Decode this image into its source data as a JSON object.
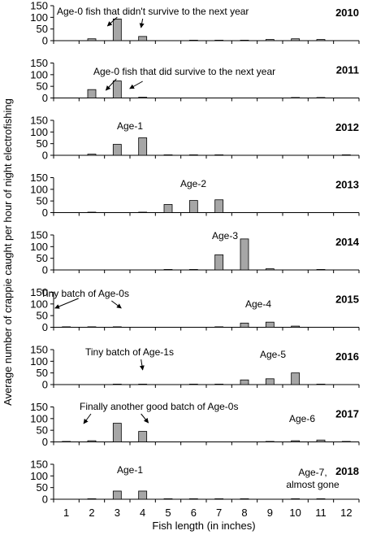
{
  "chart_data": {
    "type": "bar",
    "ylabel": "Average number of crappie caught per hour of night electrofishing",
    "xlabel": "Fish length (in inches)",
    "categories": [
      "1",
      "2",
      "3",
      "4",
      "5",
      "6",
      "7",
      "8",
      "9",
      "10",
      "11",
      "12"
    ],
    "ylim": [
      0,
      150
    ],
    "yticks": [
      0,
      50,
      100,
      150
    ],
    "bar_color": "#a6a6a6",
    "panels": [
      {
        "year": "2010",
        "values": [
          0,
          8,
          93,
          18,
          0,
          2,
          2,
          2,
          5,
          8,
          5,
          0
        ],
        "annotations": [
          {
            "text": "Age-0 fish that didn't survive to the next year",
            "targets": [
              3,
              4
            ]
          }
        ]
      },
      {
        "year": "2011",
        "values": [
          0,
          36,
          73,
          3,
          0,
          0,
          0,
          0,
          0,
          2,
          2,
          0
        ],
        "annotations": [
          {
            "text": "Age-0 fish that did survive to the next year",
            "targets": [
              3,
              4
            ]
          }
        ]
      },
      {
        "year": "2012",
        "values": [
          0,
          5,
          47,
          75,
          2,
          2,
          2,
          0,
          0,
          0,
          0,
          2
        ],
        "annotations": [
          {
            "text": "Age-1",
            "targets": []
          }
        ]
      },
      {
        "year": "2013",
        "values": [
          0,
          2,
          0,
          2,
          35,
          52,
          55,
          0,
          0,
          0,
          0,
          0
        ],
        "annotations": [
          {
            "text": "Age-2",
            "targets": []
          }
        ]
      },
      {
        "year": "2014",
        "values": [
          0,
          0,
          0,
          0,
          2,
          2,
          65,
          133,
          5,
          0,
          2,
          0
        ],
        "annotations": [
          {
            "text": "Age-3",
            "targets": []
          }
        ]
      },
      {
        "year": "2015",
        "values": [
          2,
          2,
          2,
          0,
          0,
          0,
          2,
          18,
          22,
          5,
          0,
          0
        ],
        "annotations": [
          {
            "text": "Tiny batch of Age-0s",
            "targets": [
              1,
              3
            ]
          },
          {
            "text": "Age-4",
            "targets": []
          }
        ]
      },
      {
        "year": "2016",
        "values": [
          0,
          0,
          2,
          2,
          0,
          2,
          2,
          20,
          25,
          50,
          2,
          0
        ],
        "annotations": [
          {
            "text": "Tiny batch of Age-1s",
            "targets": [
              4
            ]
          },
          {
            "text": "Age-5",
            "targets": []
          }
        ]
      },
      {
        "year": "2017",
        "values": [
          2,
          5,
          80,
          45,
          0,
          0,
          0,
          0,
          2,
          5,
          8,
          2
        ],
        "annotations": [
          {
            "text": "Finally another good batch of Age-0s",
            "targets": [
              2,
              4
            ]
          },
          {
            "text": "Age-6",
            "targets": []
          }
        ]
      },
      {
        "year": "2018",
        "values": [
          0,
          2,
          35,
          35,
          2,
          2,
          2,
          2,
          0,
          2,
          2,
          0
        ],
        "annotations": [
          {
            "text": "Age-1",
            "targets": []
          },
          {
            "text": "Age-7,",
            "targets": []
          },
          {
            "text": "almost gone",
            "targets": []
          }
        ]
      }
    ]
  }
}
